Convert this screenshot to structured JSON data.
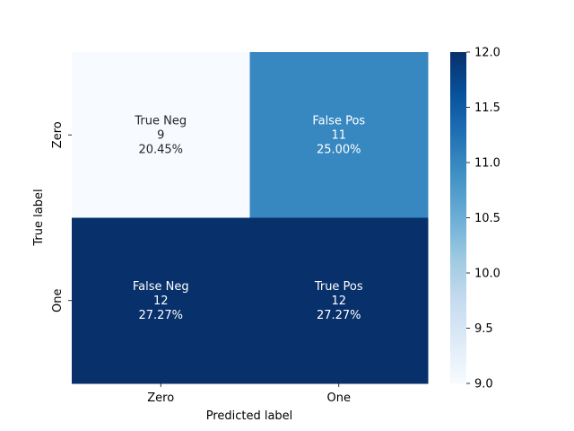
{
  "chart_data": {
    "type": "heatmap",
    "xlabel": "Predicted label",
    "ylabel": "True label",
    "x_categories": [
      "Zero",
      "One"
    ],
    "y_categories": [
      "Zero",
      "One"
    ],
    "cells": [
      [
        {
          "name": "True Neg",
          "count": "9",
          "percent": "20.45%",
          "value": 9
        },
        {
          "name": "False Pos",
          "count": "11",
          "percent": "25.00%",
          "value": 11
        }
      ],
      [
        {
          "name": "False Neg",
          "count": "12",
          "percent": "27.27%",
          "value": 12
        },
        {
          "name": "True Pos",
          "count": "12",
          "percent": "27.27%",
          "value": 12
        }
      ]
    ],
    "colorbar": {
      "min": 9.0,
      "max": 12.0,
      "ticks": [
        "9.0",
        "9.5",
        "10.0",
        "10.5",
        "11.0",
        "11.5",
        "12.0"
      ],
      "colormap": "Blues"
    }
  }
}
